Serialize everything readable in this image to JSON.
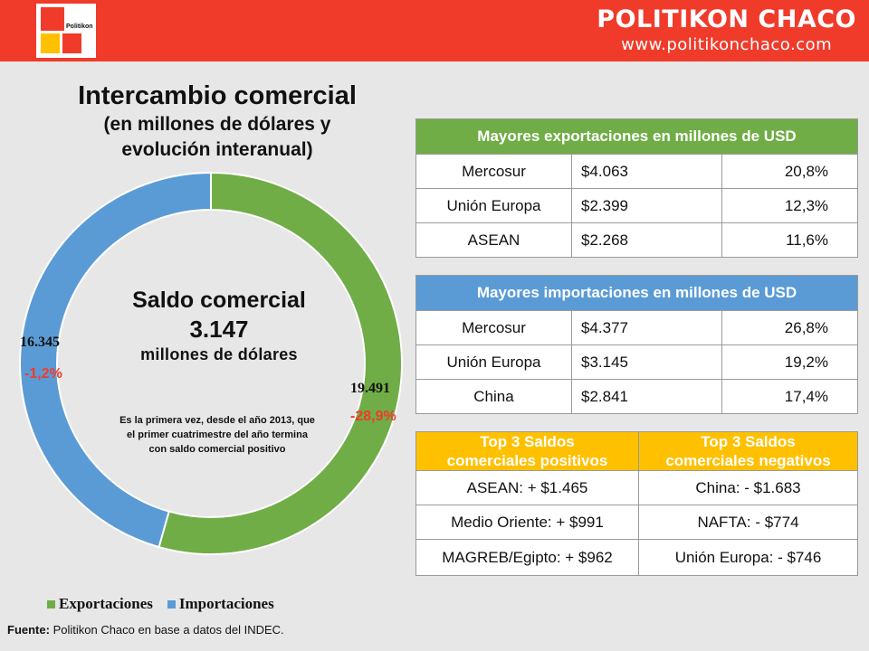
{
  "header": {
    "logo_text": "Politikon",
    "brand_name": "POLITIKON CHACO",
    "brand_url": "www.politikonchaco.com",
    "bar_color": "#f03b2b"
  },
  "title": {
    "line1": "Intercambio comercial",
    "line2": "(en millones de dólares y",
    "line3": "evolución interanual)"
  },
  "center": {
    "line1": "Saldo comercial",
    "line2": "3.147",
    "line3": "millones  de dólares",
    "note_line1": "Es  la primera vez, desde el año 2013, que",
    "note_line2": "el primer cuatrimestre del año termina",
    "note_line3": "con saldo comercial positivo"
  },
  "chart_data": {
    "type": "pie",
    "subtype": "donut",
    "start_angle_deg": 0,
    "direction": "clockwise",
    "series": [
      {
        "name": "Exportaciones",
        "value": 19491,
        "value_label": "19.491",
        "change_label": "-28,9%",
        "color": "#70ad47"
      },
      {
        "name": "Importaciones",
        "value": 16345,
        "value_label": "16.345",
        "change_label": "-1,2%",
        "color": "#5b9bd5"
      }
    ],
    "legend_position": "bottom"
  },
  "exports_table": {
    "title": "Mayores exportaciones en millones de USD",
    "color": "#70ad47",
    "rows": [
      {
        "name": "Mercosur",
        "amount": "$4.063",
        "pct": "20,8%"
      },
      {
        "name": "Unión  Europa",
        "amount": "$2.399",
        "pct": "12,3%"
      },
      {
        "name": "ASEAN",
        "amount": "$2.268",
        "pct": "11,6%"
      }
    ]
  },
  "imports_table": {
    "title": "Mayores importaciones en millones de USD",
    "color": "#5b9bd5",
    "rows": [
      {
        "name": "Mercosur",
        "amount": "$4.377",
        "pct": "26,8%"
      },
      {
        "name": "Unión  Europa",
        "amount": "$3.145",
        "pct": "19,2%"
      },
      {
        "name": "China",
        "amount": "$2.841",
        "pct": "17,4%"
      }
    ]
  },
  "balances_table": {
    "color": "#ffc000",
    "positive_header_line1": "Top 3 Saldos",
    "positive_header_line2": "comerciales positivos",
    "negative_header_line1": "Top 3 Saldos",
    "negative_header_line2": "comerciales  negativos",
    "rows": [
      {
        "positive": "ASEAN:  + $1.465",
        "negative": "China:  - $1.683"
      },
      {
        "positive": "Medio Oriente: + $991",
        "negative": "NAFTA:  - $774"
      },
      {
        "positive": "MAGREB/Egipto: + $962",
        "negative": "Unión  Europa:  - $746"
      }
    ]
  },
  "source": {
    "label": "Fuente:",
    "text": " Politikon  Chaco en base a datos del INDEC."
  }
}
